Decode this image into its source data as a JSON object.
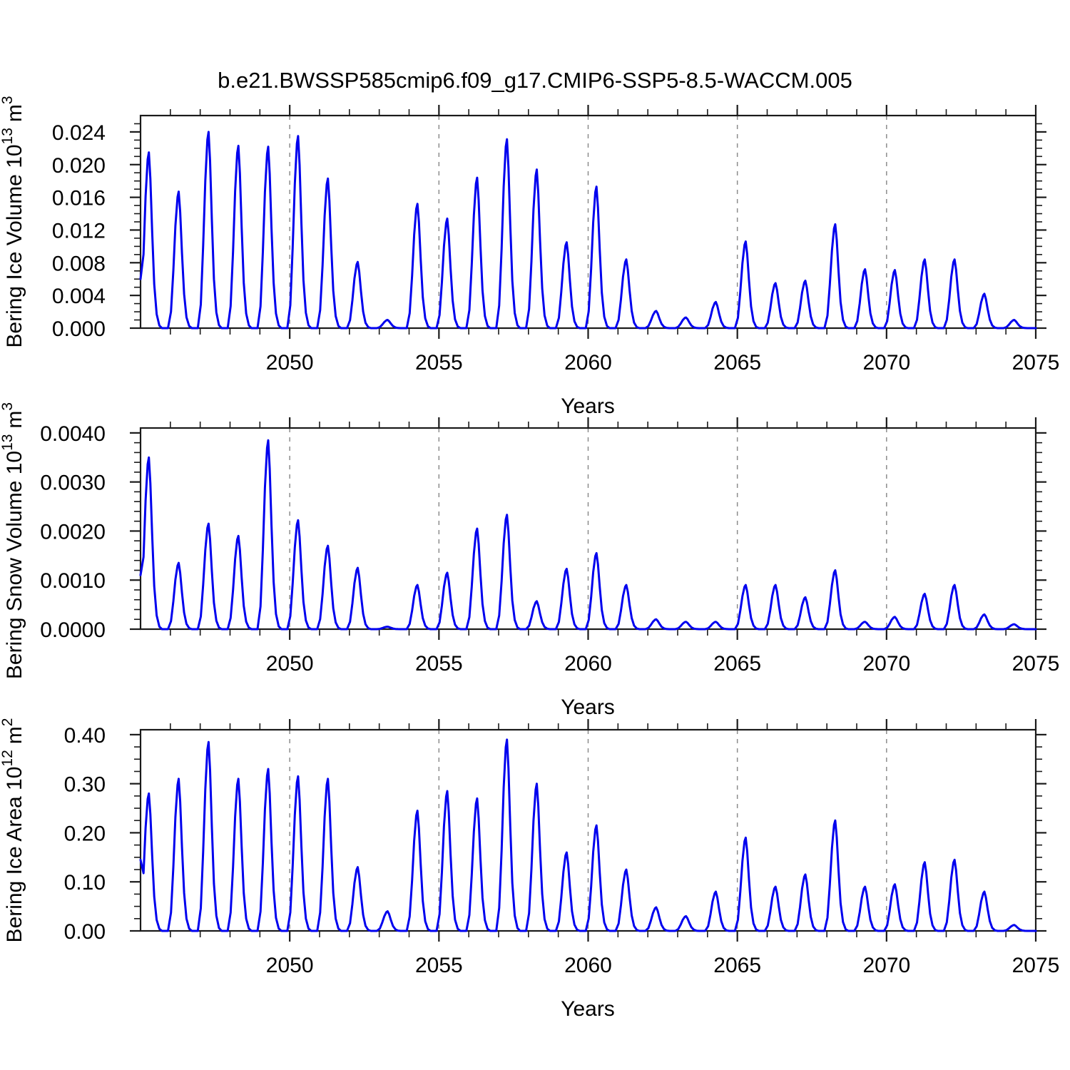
{
  "title": "b.e21.BWSSP585cmip6.f09_g17.CMIP6-SSP5-8.5-WACCM.005",
  "line_color": "#0000ee",
  "grid_color": "#8c8c8c",
  "axis_color": "#1a1a1a",
  "chart_data": [
    {
      "type": "line",
      "name": "bering-ice-volume",
      "ylabel_parts": {
        "base": "Bering Ice Volume 10",
        "exp": "13",
        "unit": "m",
        "unit_exp": "3"
      },
      "xlabel": "Years",
      "xlim": [
        2045,
        2075
      ],
      "ylim": [
        0,
        0.026
      ],
      "x_tick_labels": [
        "2050",
        "2055",
        "2060",
        "2065",
        "2070",
        "2075"
      ],
      "x_ticks": [
        2050,
        2055,
        2060,
        2065,
        2070,
        2075
      ],
      "grid_years": [
        2050,
        2055,
        2060,
        2065,
        2070
      ],
      "y_ticks": [
        0,
        0.004,
        0.008,
        0.012,
        0.016,
        0.02,
        0.024
      ],
      "y_tick_labels": [
        "0.000",
        "0.004",
        "0.008",
        "0.012",
        "0.016",
        "0.020",
        "0.024"
      ],
      "y_minor_step": 0.001,
      "start_value": 0.006,
      "years": [
        2045,
        2046,
        2047,
        2048,
        2049,
        2050,
        2051,
        2052,
        2053,
        2054,
        2055,
        2056,
        2057,
        2058,
        2059,
        2060,
        2061,
        2062,
        2063,
        2064,
        2065,
        2066,
        2067,
        2068,
        2069,
        2070,
        2071,
        2072,
        2073,
        2074
      ],
      "annual_peaks": [
        0.0215,
        0.0167,
        0.024,
        0.0223,
        0.0222,
        0.0235,
        0.0183,
        0.0081,
        0.001,
        0.0152,
        0.0134,
        0.0184,
        0.0231,
        0.0194,
        0.0105,
        0.0173,
        0.0084,
        0.0021,
        0.0013,
        0.0032,
        0.0106,
        0.0055,
        0.0058,
        0.0127,
        0.0072,
        0.0071,
        0.0084,
        0.0084,
        0.0042,
        0.001
      ]
    },
    {
      "type": "line",
      "name": "bering-snow-volume",
      "ylabel_parts": {
        "base": "Bering Snow Volume 10",
        "exp": "13",
        "unit": "m",
        "unit_exp": "3"
      },
      "xlabel": "Years",
      "xlim": [
        2045,
        2075
      ],
      "ylim": [
        0,
        0.0041
      ],
      "x_tick_labels": [
        "2050",
        "2055",
        "2060",
        "2065",
        "2070",
        "2075"
      ],
      "x_ticks": [
        2050,
        2055,
        2060,
        2065,
        2070,
        2075
      ],
      "grid_years": [
        2050,
        2055,
        2060,
        2065,
        2070
      ],
      "y_ticks": [
        0,
        0.001,
        0.002,
        0.003,
        0.004
      ],
      "y_tick_labels": [
        "0.0000",
        "0.0010",
        "0.0020",
        "0.0030",
        "0.0040"
      ],
      "y_minor_step": 0.0002,
      "start_value": 0.0011,
      "years": [
        2045,
        2046,
        2047,
        2048,
        2049,
        2050,
        2051,
        2052,
        2053,
        2054,
        2055,
        2056,
        2057,
        2058,
        2059,
        2060,
        2061,
        2062,
        2063,
        2064,
        2065,
        2066,
        2067,
        2068,
        2069,
        2070,
        2071,
        2072,
        2073,
        2074
      ],
      "annual_peaks": [
        0.0035,
        0.00135,
        0.00215,
        0.0019,
        0.00385,
        0.00222,
        0.0017,
        0.00125,
        5e-05,
        0.0009,
        0.00115,
        0.00205,
        0.00233,
        0.00057,
        0.00123,
        0.00155,
        0.0009,
        0.0002,
        0.00015,
        0.00015,
        0.0009,
        0.0009,
        0.00065,
        0.0012,
        0.00015,
        0.00025,
        0.00072,
        0.0009,
        0.0003,
        0.0001
      ]
    },
    {
      "type": "line",
      "name": "bering-ice-area",
      "ylabel_parts": {
        "base": "Bering Ice Area 10",
        "exp": "12",
        "unit": "m",
        "unit_exp": "2"
      },
      "xlabel": "Years",
      "xlim": [
        2045,
        2075
      ],
      "ylim": [
        0,
        0.41
      ],
      "x_tick_labels": [
        "2050",
        "2055",
        "2060",
        "2065",
        "2070",
        "2075"
      ],
      "x_ticks": [
        2050,
        2055,
        2060,
        2065,
        2070,
        2075
      ],
      "grid_years": [
        2050,
        2055,
        2060,
        2065,
        2070
      ],
      "y_ticks": [
        0,
        0.1,
        0.2,
        0.3,
        0.4
      ],
      "y_tick_labels": [
        "0.00",
        "0.10",
        "0.20",
        "0.30",
        "0.40"
      ],
      "y_minor_step": 0.025,
      "start_value": 0.145,
      "years": [
        2045,
        2046,
        2047,
        2048,
        2049,
        2050,
        2051,
        2052,
        2053,
        2054,
        2055,
        2056,
        2057,
        2058,
        2059,
        2060,
        2061,
        2062,
        2063,
        2064,
        2065,
        2066,
        2067,
        2068,
        2069,
        2070,
        2071,
        2072,
        2073,
        2074
      ],
      "annual_peaks": [
        0.28,
        0.31,
        0.385,
        0.31,
        0.33,
        0.315,
        0.31,
        0.13,
        0.04,
        0.245,
        0.285,
        0.27,
        0.39,
        0.3,
        0.16,
        0.215,
        0.125,
        0.048,
        0.03,
        0.08,
        0.19,
        0.09,
        0.115,
        0.225,
        0.09,
        0.095,
        0.14,
        0.145,
        0.08,
        0.012
      ]
    }
  ]
}
